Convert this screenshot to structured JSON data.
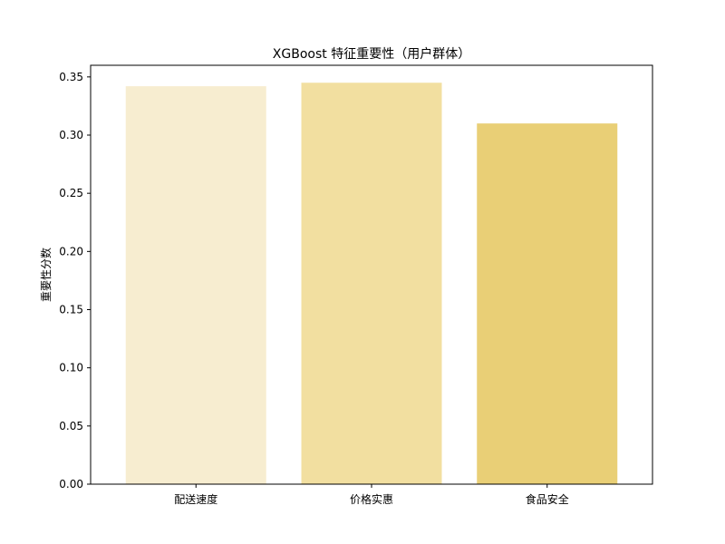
{
  "chart_data": {
    "type": "bar",
    "title": "XGBoost 特征重要性（用户群体）",
    "xlabel": "",
    "ylabel": "重要性分数",
    "categories": [
      "配送速度",
      "价格实惠",
      "食品安全"
    ],
    "values": [
      0.342,
      0.345,
      0.31
    ],
    "colors": [
      "#f7edd0",
      "#f2dfa0",
      "#e9cf76"
    ],
    "ylim": [
      0,
      0.36
    ],
    "yticks": [
      "0.00",
      "0.05",
      "0.10",
      "0.15",
      "0.20",
      "0.25",
      "0.30",
      "0.35"
    ],
    "grid": false
  }
}
